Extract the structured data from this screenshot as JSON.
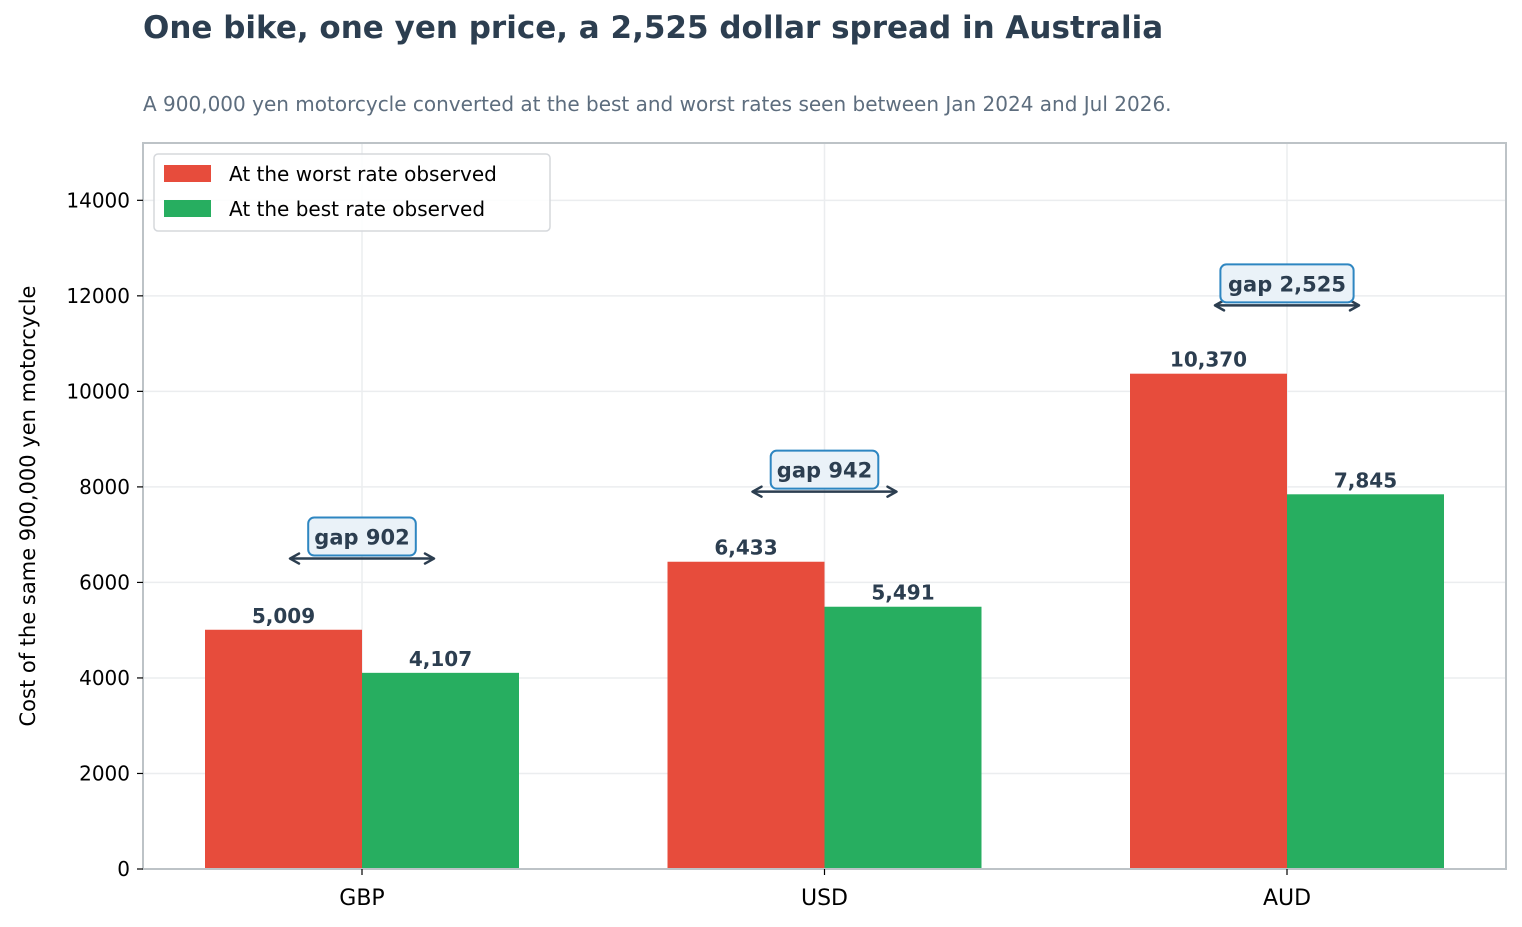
{
  "title": "One bike, one yen price, a 2,525 dollar spread in Australia",
  "subtitle": "A 900,000 yen motorcycle converted at the best and worst rates seen between Jan 2024 and Jul 2026.",
  "chart_data": {
    "type": "bar",
    "categories": [
      "GBP",
      "USD",
      "AUD"
    ],
    "series": [
      {
        "name": "At the worst rate observed",
        "values": [
          5009,
          6433,
          10370
        ],
        "labels": [
          "5,009",
          "6,433",
          "10,370"
        ],
        "color": "#e74c3c"
      },
      {
        "name": "At the best rate observed",
        "values": [
          4107,
          5491,
          7845
        ],
        "labels": [
          "4,107",
          "5,491",
          "7,845"
        ],
        "color": "#27ae60"
      }
    ],
    "annotations": [
      {
        "category": "GBP",
        "text": "gap 902",
        "value": 6500
      },
      {
        "category": "USD",
        "text": "gap 942",
        "value": 7900
      },
      {
        "category": "AUD",
        "text": "gap 2,525",
        "value": 11800
      }
    ],
    "xlabel": "",
    "ylabel": "Cost of the same 900,000 yen motorcycle",
    "ylim": [
      0,
      15200
    ],
    "yticks": [
      0,
      2000,
      4000,
      6000,
      8000,
      10000,
      12000,
      14000
    ],
    "grid": true,
    "legend_position": "top-left",
    "colors": {
      "text": "#2c3e50",
      "subtitle": "#5d6d7e",
      "grid": "#ebedef",
      "frame": "#bdc3c7",
      "annotation_border": "#2e86c1",
      "annotation_fill": "#eaf2f8",
      "arrow": "#2c3e50"
    }
  }
}
